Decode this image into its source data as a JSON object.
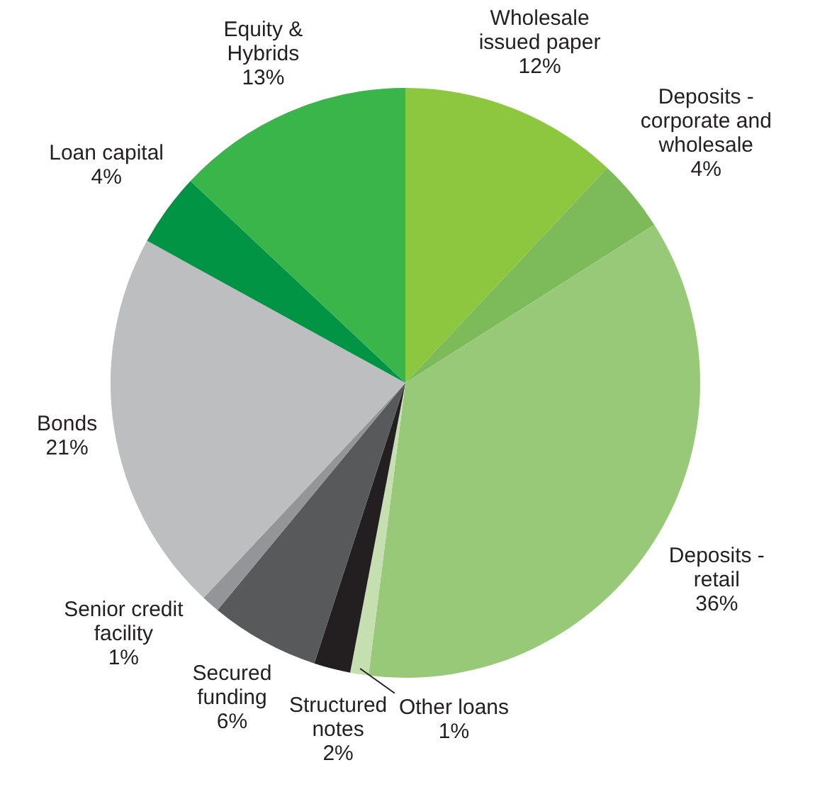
{
  "chart_data": {
    "type": "pie",
    "categories": [
      "Wholesale issued paper",
      "Deposits - corporate and wholesale",
      "Deposits - retail",
      "Other loans",
      "Structured notes",
      "Secured funding",
      "Senior credit facility",
      "Bonds",
      "Loan capital",
      "Equity & Hybrids"
    ],
    "values": [
      12,
      4,
      36,
      1,
      2,
      6,
      1,
      21,
      4,
      13
    ],
    "value_labels": [
      "12%",
      "4%",
      "36%",
      "1%",
      "2%",
      "6%",
      "1%",
      "21%",
      "4%",
      "13%"
    ],
    "colors": [
      "#8dc63f",
      "#7dbb5a",
      "#98c978",
      "#c5dfb0",
      "#231f20",
      "#58595b",
      "#939598",
      "#bcbec0",
      "#009444",
      "#39b54a"
    ],
    "legend": false
  }
}
